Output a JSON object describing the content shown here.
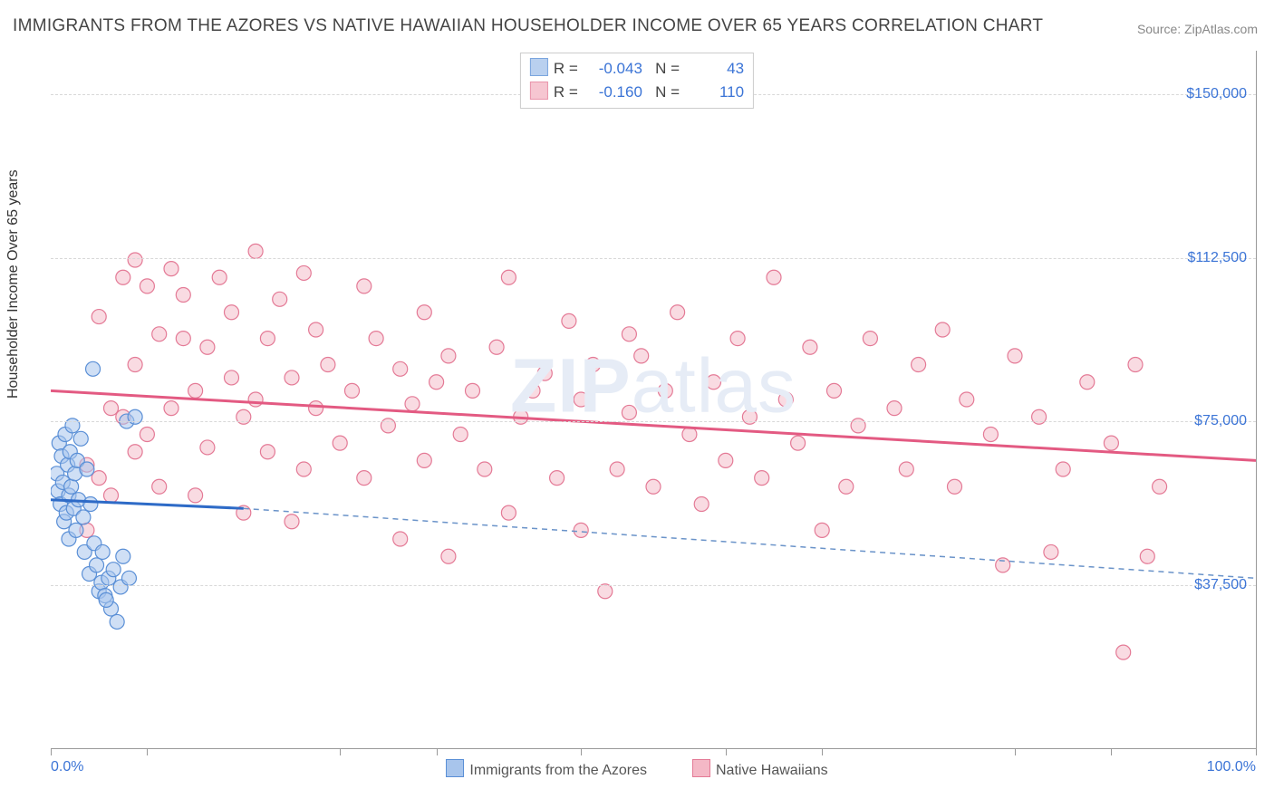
{
  "title": "IMMIGRANTS FROM THE AZORES VS NATIVE HAWAIIAN HOUSEHOLDER INCOME OVER 65 YEARS CORRELATION CHART",
  "source": "Source: ZipAtlas.com",
  "watermark_bold": "ZIP",
  "watermark_rest": "atlas",
  "chart": {
    "type": "scatter",
    "background_color": "#ffffff",
    "grid_color": "#d8d8d8",
    "border_color": "#999999",
    "ylabel": "Householder Income Over 65 years",
    "label_fontsize": 16,
    "tick_color": "#3b74d6",
    "xlim": [
      0,
      100
    ],
    "ylim": [
      0,
      160000
    ],
    "yticks": [
      37500,
      75000,
      112500,
      150000
    ],
    "ytick_labels": [
      "$37,500",
      "$75,000",
      "$112,500",
      "$150,000"
    ],
    "xtick_positions": [
      0,
      8,
      24,
      32,
      44,
      56,
      64,
      80,
      88,
      100
    ],
    "xaxis_left_label": "0.0%",
    "xaxis_right_label": "100.0%",
    "marker_radius": 8,
    "marker_stroke_width": 1.2,
    "series": [
      {
        "name": "Immigrants from the Azores",
        "fill_color": "#a8c5ec",
        "stroke_color": "#5a8fd6",
        "fill_opacity": 0.55,
        "R": "-0.043",
        "N": "43",
        "trend": {
          "x1": 0,
          "y1": 57000,
          "x2": 16,
          "y2": 55000,
          "solid_color": "#2e6bc7",
          "width": 3
        },
        "trend_ext": {
          "x1": 16,
          "y1": 55000,
          "x2": 100,
          "y2": 39000,
          "dash_color": "#6a93c9",
          "width": 1.5,
          "dash": "6,5"
        },
        "points": [
          [
            0.5,
            63000
          ],
          [
            0.6,
            59000
          ],
          [
            0.7,
            70000
          ],
          [
            0.8,
            56000
          ],
          [
            0.9,
            67000
          ],
          [
            1.0,
            61000
          ],
          [
            1.1,
            52000
          ],
          [
            1.2,
            72000
          ],
          [
            1.3,
            54000
          ],
          [
            1.4,
            65000
          ],
          [
            1.5,
            58000
          ],
          [
            1.5,
            48000
          ],
          [
            1.6,
            68000
          ],
          [
            1.7,
            60000
          ],
          [
            1.8,
            74000
          ],
          [
            1.9,
            55000
          ],
          [
            2.0,
            63000
          ],
          [
            2.1,
            50000
          ],
          [
            2.2,
            66000
          ],
          [
            2.3,
            57000
          ],
          [
            2.5,
            71000
          ],
          [
            2.7,
            53000
          ],
          [
            2.8,
            45000
          ],
          [
            3.0,
            64000
          ],
          [
            3.2,
            40000
          ],
          [
            3.3,
            56000
          ],
          [
            3.5,
            87000
          ],
          [
            3.6,
            47000
          ],
          [
            3.8,
            42000
          ],
          [
            4.0,
            36000
          ],
          [
            4.2,
            38000
          ],
          [
            4.3,
            45000
          ],
          [
            4.5,
            35000
          ],
          [
            4.8,
            39000
          ],
          [
            5.0,
            32000
          ],
          [
            5.2,
            41000
          ],
          [
            5.8,
            37000
          ],
          [
            6.0,
            44000
          ],
          [
            6.3,
            75000
          ],
          [
            6.5,
            39000
          ],
          [
            7.0,
            76000
          ],
          [
            5.5,
            29000
          ],
          [
            4.6,
            34000
          ]
        ]
      },
      {
        "name": "Native Hawaiians",
        "fill_color": "#f4b8c6",
        "stroke_color": "#e47a96",
        "fill_opacity": 0.5,
        "R": "-0.160",
        "N": "110",
        "trend": {
          "x1": 0,
          "y1": 82000,
          "x2": 100,
          "y2": 66000,
          "solid_color": "#e35a82",
          "width": 3
        },
        "points": [
          [
            3,
            65000
          ],
          [
            4,
            99000
          ],
          [
            5,
            78000
          ],
          [
            5,
            58000
          ],
          [
            6,
            108000
          ],
          [
            6,
            76000
          ],
          [
            7,
            112000
          ],
          [
            7,
            68000
          ],
          [
            7,
            88000
          ],
          [
            8,
            106000
          ],
          [
            8,
            72000
          ],
          [
            9,
            95000
          ],
          [
            9,
            60000
          ],
          [
            10,
            78000
          ],
          [
            10,
            110000
          ],
          [
            11,
            94000
          ],
          [
            11,
            104000
          ],
          [
            12,
            82000
          ],
          [
            13,
            69000
          ],
          [
            13,
            92000
          ],
          [
            14,
            108000
          ],
          [
            15,
            85000
          ],
          [
            15,
            100000
          ],
          [
            16,
            76000
          ],
          [
            17,
            114000
          ],
          [
            17,
            80000
          ],
          [
            18,
            68000
          ],
          [
            18,
            94000
          ],
          [
            19,
            103000
          ],
          [
            20,
            85000
          ],
          [
            21,
            109000
          ],
          [
            21,
            64000
          ],
          [
            22,
            96000
          ],
          [
            22,
            78000
          ],
          [
            23,
            88000
          ],
          [
            24,
            70000
          ],
          [
            25,
            82000
          ],
          [
            26,
            62000
          ],
          [
            26,
            106000
          ],
          [
            27,
            94000
          ],
          [
            28,
            74000
          ],
          [
            29,
            87000
          ],
          [
            29,
            48000
          ],
          [
            30,
            79000
          ],
          [
            31,
            66000
          ],
          [
            31,
            100000
          ],
          [
            32,
            84000
          ],
          [
            33,
            44000
          ],
          [
            33,
            90000
          ],
          [
            34,
            72000
          ],
          [
            35,
            82000
          ],
          [
            36,
            64000
          ],
          [
            37,
            92000
          ],
          [
            38,
            54000
          ],
          [
            38,
            108000
          ],
          [
            39,
            76000
          ],
          [
            40,
            82000
          ],
          [
            41,
            86000
          ],
          [
            42,
            62000
          ],
          [
            43,
            98000
          ],
          [
            44,
            80000
          ],
          [
            44,
            50000
          ],
          [
            45,
            88000
          ],
          [
            46,
            36000
          ],
          [
            47,
            64000
          ],
          [
            48,
            77000
          ],
          [
            49,
            90000
          ],
          [
            50,
            60000
          ],
          [
            51,
            82000
          ],
          [
            52,
            100000
          ],
          [
            53,
            72000
          ],
          [
            54,
            56000
          ],
          [
            55,
            84000
          ],
          [
            56,
            66000
          ],
          [
            57,
            94000
          ],
          [
            58,
            76000
          ],
          [
            59,
            62000
          ],
          [
            60,
            108000
          ],
          [
            61,
            80000
          ],
          [
            62,
            70000
          ],
          [
            63,
            92000
          ],
          [
            64,
            50000
          ],
          [
            65,
            82000
          ],
          [
            66,
            60000
          ],
          [
            67,
            74000
          ],
          [
            68,
            94000
          ],
          [
            70,
            78000
          ],
          [
            71,
            64000
          ],
          [
            72,
            88000
          ],
          [
            74,
            96000
          ],
          [
            75,
            60000
          ],
          [
            76,
            80000
          ],
          [
            78,
            72000
          ],
          [
            79,
            42000
          ],
          [
            80,
            90000
          ],
          [
            82,
            76000
          ],
          [
            83,
            45000
          ],
          [
            84,
            64000
          ],
          [
            86,
            84000
          ],
          [
            88,
            70000
          ],
          [
            89,
            22000
          ],
          [
            90,
            88000
          ],
          [
            91,
            44000
          ],
          [
            92,
            60000
          ],
          [
            3,
            50000
          ],
          [
            4,
            62000
          ],
          [
            12,
            58000
          ],
          [
            16,
            54000
          ],
          [
            20,
            52000
          ],
          [
            48,
            95000
          ]
        ]
      }
    ],
    "bottom_legend": [
      {
        "label": "Immigrants from the Azores",
        "fill": "#a8c5ec",
        "stroke": "#5a8fd6"
      },
      {
        "label": "Native Hawaiians",
        "fill": "#f4b8c6",
        "stroke": "#e47a96"
      }
    ]
  }
}
